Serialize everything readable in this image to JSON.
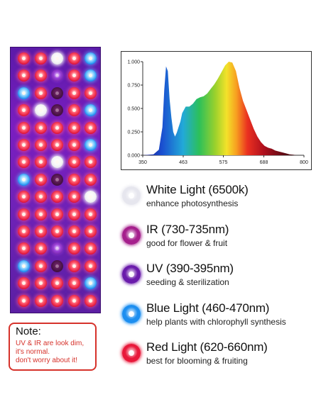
{
  "spectrum_chart": {
    "type": "area",
    "x_ticks": [
      "350",
      "463",
      "575",
      "688",
      "800"
    ],
    "y_ticks": [
      "0.000",
      "0.250",
      "0.500",
      "0.750",
      "1.000"
    ],
    "xlim": [
      350,
      800
    ],
    "ylim": [
      0,
      1
    ],
    "x": [
      350,
      380,
      395,
      405,
      410,
      415,
      420,
      425,
      430,
      435,
      440,
      445,
      450,
      455,
      460,
      470,
      480,
      490,
      500,
      510,
      520,
      530,
      540,
      550,
      560,
      570,
      580,
      590,
      600,
      610,
      620,
      630,
      640,
      650,
      660,
      670,
      680,
      690,
      700,
      710,
      720,
      730,
      740,
      750,
      760,
      770,
      780,
      790,
      800
    ],
    "y": [
      0,
      0.01,
      0.06,
      0.3,
      0.7,
      0.95,
      0.9,
      0.6,
      0.4,
      0.25,
      0.2,
      0.24,
      0.3,
      0.36,
      0.45,
      0.52,
      0.52,
      0.55,
      0.6,
      0.62,
      0.63,
      0.66,
      0.71,
      0.76,
      0.82,
      0.89,
      0.96,
      1.0,
      0.99,
      0.9,
      0.72,
      0.58,
      0.48,
      0.38,
      0.28,
      0.2,
      0.14,
      0.1,
      0.08,
      0.07,
      0.05,
      0.04,
      0.03,
      0.02,
      0.01,
      0.005,
      0,
      0,
      0
    ]
  },
  "legend": [
    {
      "title": "White Light (6500k)",
      "subtitle": "enhance photosynthesis",
      "color": "#e6e6ee"
    },
    {
      "title": "IR (730-735nm)",
      "subtitle": "good for flower & fruit",
      "color": "#a51f8c"
    },
    {
      "title": "UV (390-395nm)",
      "subtitle": "seeding & sterilization",
      "color": "#6a1bab"
    },
    {
      "title": "Blue Light (460-470nm)",
      "subtitle": "help plants with chlorophyll synthesis",
      "color": "#1c8ef0"
    },
    {
      "title": "Red Light (620-660nm)",
      "subtitle": "best for blooming & fruiting",
      "color": "#e8183a"
    }
  ],
  "note": {
    "title": "Note:",
    "lines": [
      "UV & IR are look dim,",
      "it's normal.",
      "don't worry about it!"
    ]
  },
  "led_grid": [
    [
      "red",
      "red",
      "white",
      "red",
      "blue"
    ],
    [
      "red",
      "red",
      "uv",
      "red",
      "blue"
    ],
    [
      "blue",
      "red",
      "ir",
      "red",
      "red"
    ],
    [
      "red",
      "white",
      "ir",
      "red",
      "blue"
    ],
    [
      "red",
      "red",
      "red",
      "red",
      "red"
    ],
    [
      "red",
      "red",
      "red",
      "red",
      "blue"
    ],
    [
      "red",
      "red",
      "white",
      "red",
      "red"
    ],
    [
      "blue",
      "red",
      "ir",
      "red",
      "red"
    ],
    [
      "red",
      "red",
      "red",
      "red",
      "white"
    ],
    [
      "red",
      "red",
      "red",
      "red",
      "red"
    ],
    [
      "red",
      "red",
      "red",
      "red",
      "red"
    ],
    [
      "red",
      "red",
      "uv",
      "red",
      "red"
    ],
    [
      "blue",
      "red",
      "ir",
      "red",
      "red"
    ],
    [
      "red",
      "red",
      "red",
      "red",
      "blue"
    ],
    [
      "red",
      "red",
      "red",
      "red",
      "red"
    ]
  ]
}
